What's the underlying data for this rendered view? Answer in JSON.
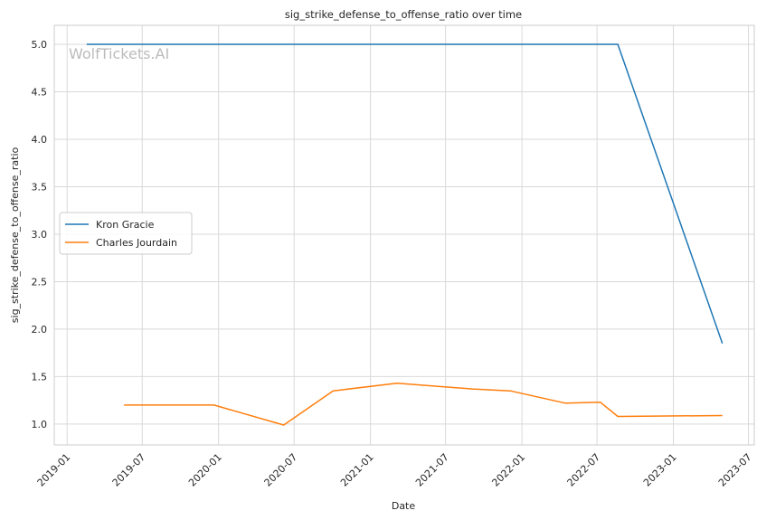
{
  "chart_data": {
    "type": "line",
    "title": "sig_strike_defense_to_offense_ratio over time",
    "xlabel": "Date",
    "ylabel": "sig_strike_defense_to_offense_ratio",
    "watermark": "WolfTickets.AI",
    "x_axis_type": "date",
    "xlim": [
      "2018-12-01",
      "2023-07-15"
    ],
    "ylim": [
      0.78,
      5.2
    ],
    "x_ticks": [
      "2019-01",
      "2019-07",
      "2020-01",
      "2020-07",
      "2021-01",
      "2021-07",
      "2022-01",
      "2022-07",
      "2023-01",
      "2023-07"
    ],
    "y_ticks": [
      "1.0",
      "1.5",
      "2.0",
      "2.5",
      "3.0",
      "3.5",
      "4.0",
      "4.5",
      "5.0"
    ],
    "grid": true,
    "legend_position": "center-left",
    "series": [
      {
        "name": "Kron Gracie",
        "color": "#1f77b4",
        "points": [
          {
            "x": "2019-02-17",
            "y": 5.0
          },
          {
            "x": "2022-08-20",
            "y": 5.0
          },
          {
            "x": "2023-04-29",
            "y": 1.85
          }
        ]
      },
      {
        "name": "Charles Jourdain",
        "color": "#ff7f0e",
        "points": [
          {
            "x": "2019-05-18",
            "y": 1.2
          },
          {
            "x": "2019-12-21",
            "y": 1.2
          },
          {
            "x": "2020-06-06",
            "y": 0.99
          },
          {
            "x": "2020-10-03",
            "y": 1.35
          },
          {
            "x": "2021-03-06",
            "y": 1.43
          },
          {
            "x": "2021-09-04",
            "y": 1.37
          },
          {
            "x": "2021-12-04",
            "y": 1.35
          },
          {
            "x": "2022-04-16",
            "y": 1.22
          },
          {
            "x": "2022-07-09",
            "y": 1.23
          },
          {
            "x": "2022-08-20",
            "y": 1.08
          },
          {
            "x": "2023-04-29",
            "y": 1.09
          }
        ]
      }
    ]
  }
}
